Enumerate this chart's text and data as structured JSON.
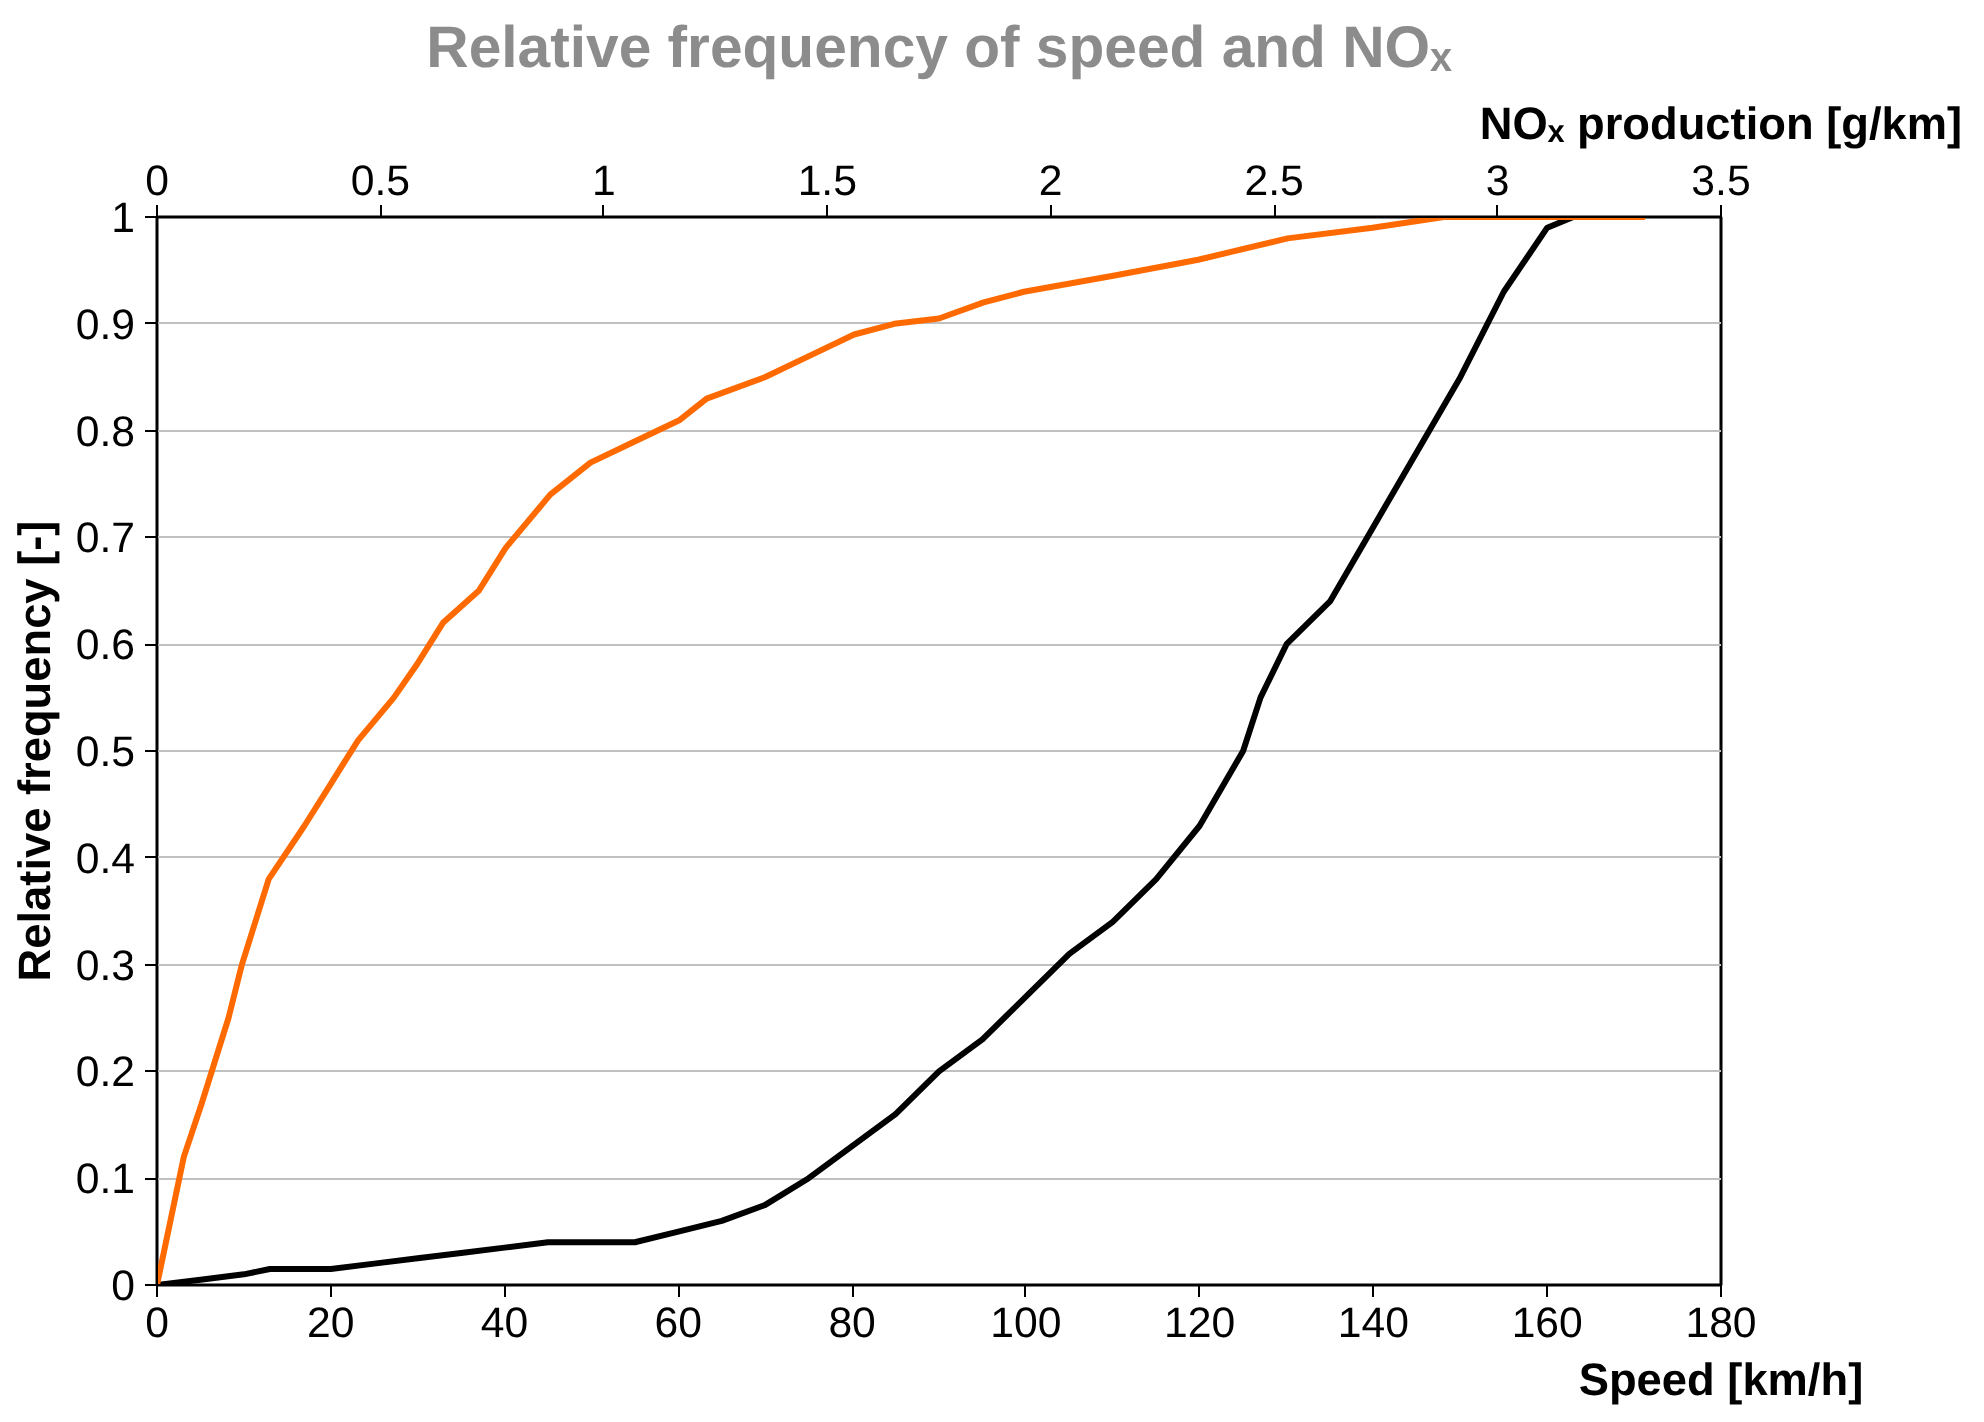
{
  "chart_data": {
    "type": "line",
    "title": "Relative frequency of speed and NOₓ",
    "xlabel": "Speed [km/h]",
    "x2label": "NOₓ production [g/km]",
    "ylabel": "Relative frequency [-]",
    "xlim": [
      0,
      180
    ],
    "xticks": [
      0,
      20,
      40,
      60,
      80,
      100,
      120,
      140,
      160,
      180
    ],
    "x2lim": [
      0,
      3.5
    ],
    "x2ticks": [
      0,
      0.5,
      1,
      1.5,
      2,
      2.5,
      3,
      3.5
    ],
    "ylim": [
      0,
      1
    ],
    "yticks": [
      0,
      0.1,
      0.2,
      0.3,
      0.4,
      0.5,
      0.6,
      0.7,
      0.8,
      0.9,
      1
    ],
    "grid": "y",
    "marker": "none",
    "line_style": "solid",
    "series": [
      {
        "color": "#000000",
        "x": [
          0,
          5,
          10,
          13,
          20,
          25,
          30,
          35,
          40,
          45,
          55,
          60,
          65,
          70,
          75,
          80,
          85,
          90,
          95,
          100,
          105,
          110,
          115,
          120,
          125,
          127,
          130,
          135,
          140,
          145,
          150,
          155,
          160,
          163
        ],
        "values": [
          0,
          0.005,
          0.01,
          0.015,
          0.015,
          0.02,
          0.025,
          0.03,
          0.035,
          0.04,
          0.04,
          0.05,
          0.06,
          0.075,
          0.1,
          0.13,
          0.16,
          0.2,
          0.23,
          0.27,
          0.31,
          0.34,
          0.38,
          0.43,
          0.5,
          0.55,
          0.6,
          0.64,
          0.71,
          0.78,
          0.85,
          0.93,
          0.99,
          1.0
        ]
      },
      {
        "color": "#ff6a00",
        "axis": "x2",
        "x": [
          0,
          0.06,
          0.1,
          0.16,
          0.19,
          0.25,
          0.33,
          0.39,
          0.45,
          0.53,
          0.58,
          0.64,
          0.72,
          0.78,
          0.88,
          0.97,
          1.07,
          1.17,
          1.23,
          1.36,
          1.46,
          1.56,
          1.65,
          1.75,
          1.85,
          1.94,
          2.14,
          2.33,
          2.53,
          2.72,
          2.88,
          3.33
        ],
        "values": [
          0,
          0.12,
          0.17,
          0.25,
          0.3,
          0.38,
          0.43,
          0.47,
          0.51,
          0.55,
          0.58,
          0.62,
          0.65,
          0.69,
          0.74,
          0.77,
          0.79,
          0.81,
          0.83,
          0.85,
          0.87,
          0.89,
          0.9,
          0.905,
          0.92,
          0.93,
          0.945,
          0.96,
          0.98,
          0.99,
          1.0,
          1.0
        ]
      }
    ]
  }
}
